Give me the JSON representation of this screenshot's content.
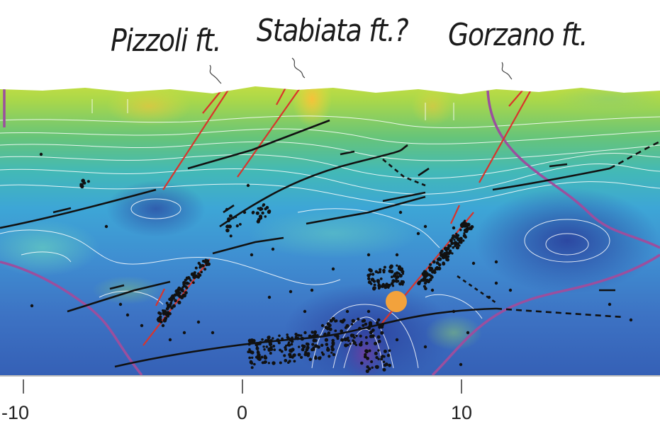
{
  "labels": {
    "pizzoli": "Pizzoli ft.",
    "stabiata": "Stabiata ft.?",
    "gorzano": "Gorzano ft."
  },
  "axis": {
    "ticks": [
      "-10",
      "0",
      "10"
    ]
  },
  "colors": {
    "fault_red": "#d9342b",
    "thrust_black": "#111111",
    "contour_purple": "#9b4f9e",
    "hypocenter_orange": "#f2a23c"
  }
}
